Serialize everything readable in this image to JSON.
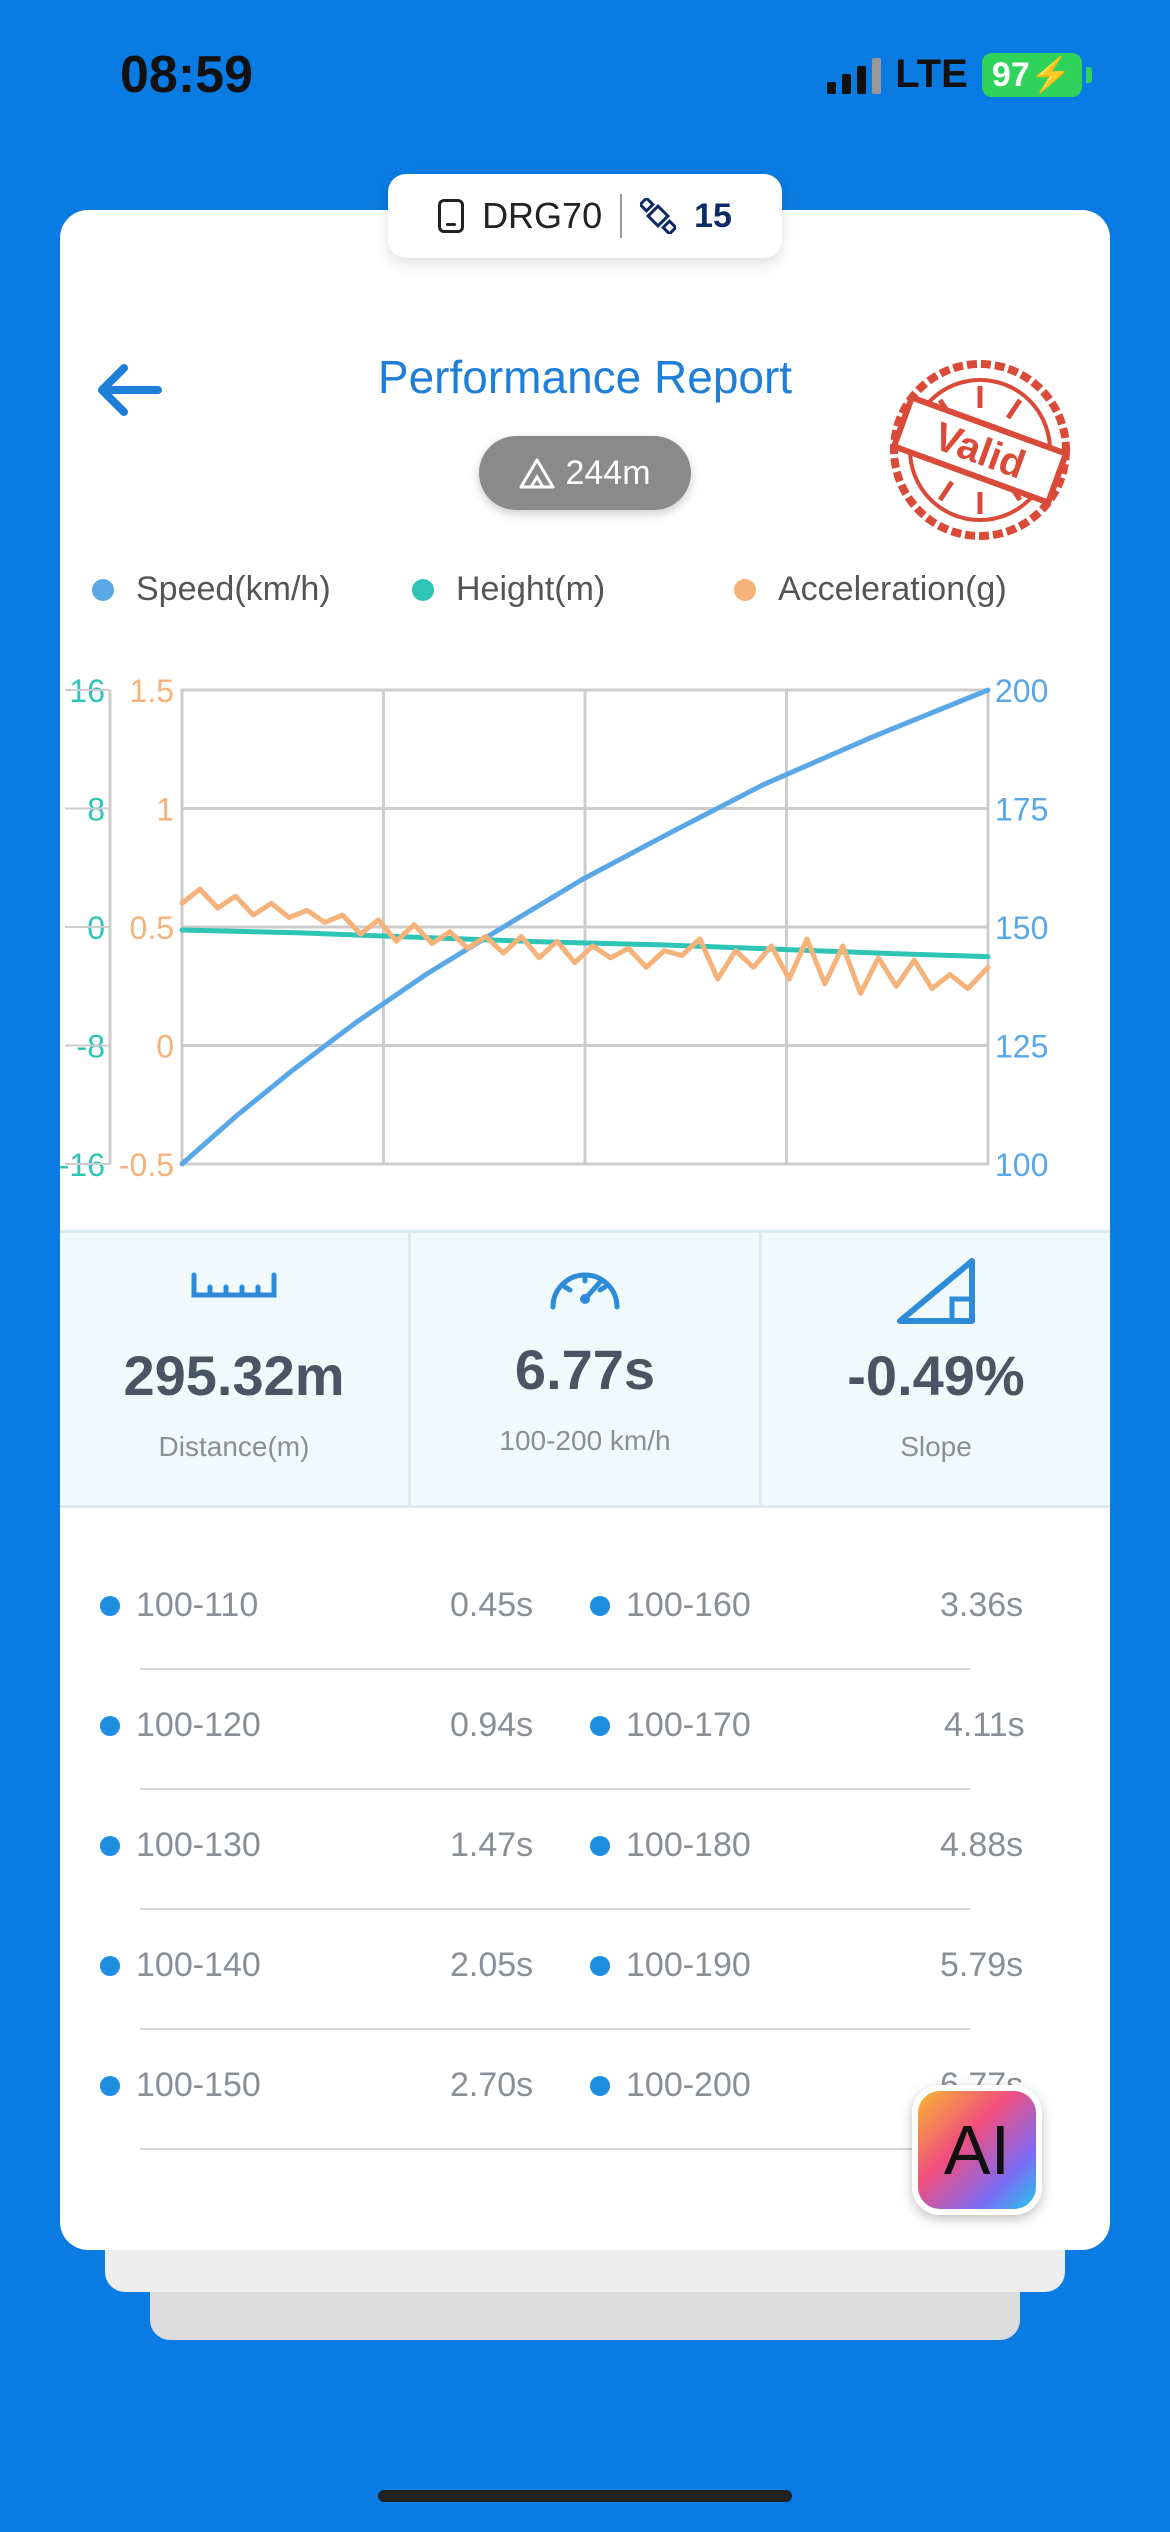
{
  "status_bar": {
    "time": "08:59",
    "network": "LTE",
    "battery": "97"
  },
  "device": {
    "name": "DRG70",
    "satellites": "15"
  },
  "header": {
    "title": "Performance Report",
    "altitude": "244m",
    "stamp_text": "Valid"
  },
  "colors": {
    "speed": "#5AA7E8",
    "height": "#2EC4B6",
    "acceleration": "#F5B27A",
    "accent": "#1E7FD8",
    "stamp": "#D94A38"
  },
  "legend": [
    {
      "label": "Speed(km/h)",
      "color": "#5AA7E8"
    },
    {
      "label": "Height(m)",
      "color": "#2EC4B6"
    },
    {
      "label": "Acceleration(g)",
      "color": "#F5B27A"
    }
  ],
  "chart_data": {
    "type": "line",
    "axes": {
      "height": {
        "ticks": [
          "16",
          "8",
          "0",
          "-8",
          "-16"
        ],
        "range": [
          -16,
          16
        ]
      },
      "acceleration": {
        "ticks": [
          "1.5",
          "1",
          "0.5",
          "0",
          "-0.5"
        ],
        "range": [
          -0.5,
          1.5
        ]
      },
      "speed": {
        "ticks": [
          "200",
          "175",
          "150",
          "125",
          "100"
        ],
        "range": [
          100,
          200
        ]
      }
    },
    "x_range": [
      0,
      6.77
    ],
    "grid": true,
    "series": [
      {
        "name": "Speed(km/h)",
        "axis": "speed",
        "points": [
          [
            0,
            100
          ],
          [
            0.45,
            110
          ],
          [
            0.94,
            120
          ],
          [
            1.47,
            130
          ],
          [
            2.05,
            140
          ],
          [
            2.7,
            150
          ],
          [
            3.36,
            160
          ],
          [
            4.11,
            170
          ],
          [
            4.88,
            180
          ],
          [
            5.79,
            190
          ],
          [
            6.77,
            200
          ]
        ]
      },
      {
        "name": "Height(m)",
        "axis": "height",
        "points": [
          [
            0,
            -0.2
          ],
          [
            1,
            -0.4
          ],
          [
            2,
            -0.7
          ],
          [
            3,
            -1.0
          ],
          [
            4,
            -1.2
          ],
          [
            5,
            -1.5
          ],
          [
            6,
            -1.8
          ],
          [
            6.77,
            -2.0
          ]
        ]
      },
      {
        "name": "Acceleration(g)",
        "axis": "acceleration",
        "points": [
          [
            0,
            0.6
          ],
          [
            0.15,
            0.66
          ],
          [
            0.3,
            0.58
          ],
          [
            0.45,
            0.63
          ],
          [
            0.6,
            0.55
          ],
          [
            0.75,
            0.6
          ],
          [
            0.9,
            0.54
          ],
          [
            1.05,
            0.57
          ],
          [
            1.2,
            0.52
          ],
          [
            1.35,
            0.55
          ],
          [
            1.5,
            0.47
          ],
          [
            1.65,
            0.53
          ],
          [
            1.8,
            0.44
          ],
          [
            1.95,
            0.51
          ],
          [
            2.1,
            0.43
          ],
          [
            2.25,
            0.48
          ],
          [
            2.4,
            0.41
          ],
          [
            2.55,
            0.46
          ],
          [
            2.7,
            0.39
          ],
          [
            2.85,
            0.46
          ],
          [
            3.0,
            0.37
          ],
          [
            3.15,
            0.44
          ],
          [
            3.3,
            0.35
          ],
          [
            3.45,
            0.42
          ],
          [
            3.6,
            0.37
          ],
          [
            3.75,
            0.41
          ],
          [
            3.9,
            0.33
          ],
          [
            4.05,
            0.4
          ],
          [
            4.2,
            0.38
          ],
          [
            4.35,
            0.45
          ],
          [
            4.5,
            0.28
          ],
          [
            4.65,
            0.4
          ],
          [
            4.8,
            0.33
          ],
          [
            4.95,
            0.42
          ],
          [
            5.1,
            0.28
          ],
          [
            5.25,
            0.45
          ],
          [
            5.4,
            0.26
          ],
          [
            5.55,
            0.42
          ],
          [
            5.7,
            0.22
          ],
          [
            5.85,
            0.37
          ],
          [
            6.0,
            0.25
          ],
          [
            6.15,
            0.36
          ],
          [
            6.3,
            0.24
          ],
          [
            6.45,
            0.3
          ],
          [
            6.6,
            0.24
          ],
          [
            6.77,
            0.33
          ]
        ]
      }
    ]
  },
  "stats": [
    {
      "icon": "ruler-icon",
      "value": "295.32m",
      "label": "Distance(m)"
    },
    {
      "icon": "speedometer-icon",
      "value": "6.77s",
      "label": "100-200 km/h"
    },
    {
      "icon": "slope-icon",
      "value": "-0.49%",
      "label": "Slope"
    }
  ],
  "splits": [
    {
      "left_label": "100-110",
      "left_time": "0.45s",
      "right_label": "100-160",
      "right_time": "3.36s"
    },
    {
      "left_label": "100-120",
      "left_time": "0.94s",
      "right_label": "100-170",
      "right_time": "4.11s"
    },
    {
      "left_label": "100-130",
      "left_time": "1.47s",
      "right_label": "100-180",
      "right_time": "4.88s"
    },
    {
      "left_label": "100-140",
      "left_time": "2.05s",
      "right_label": "100-190",
      "right_time": "5.79s"
    },
    {
      "left_label": "100-150",
      "left_time": "2.70s",
      "right_label": "100-200",
      "right_time": "6.77s"
    }
  ],
  "ai_button": {
    "label": "AI"
  }
}
